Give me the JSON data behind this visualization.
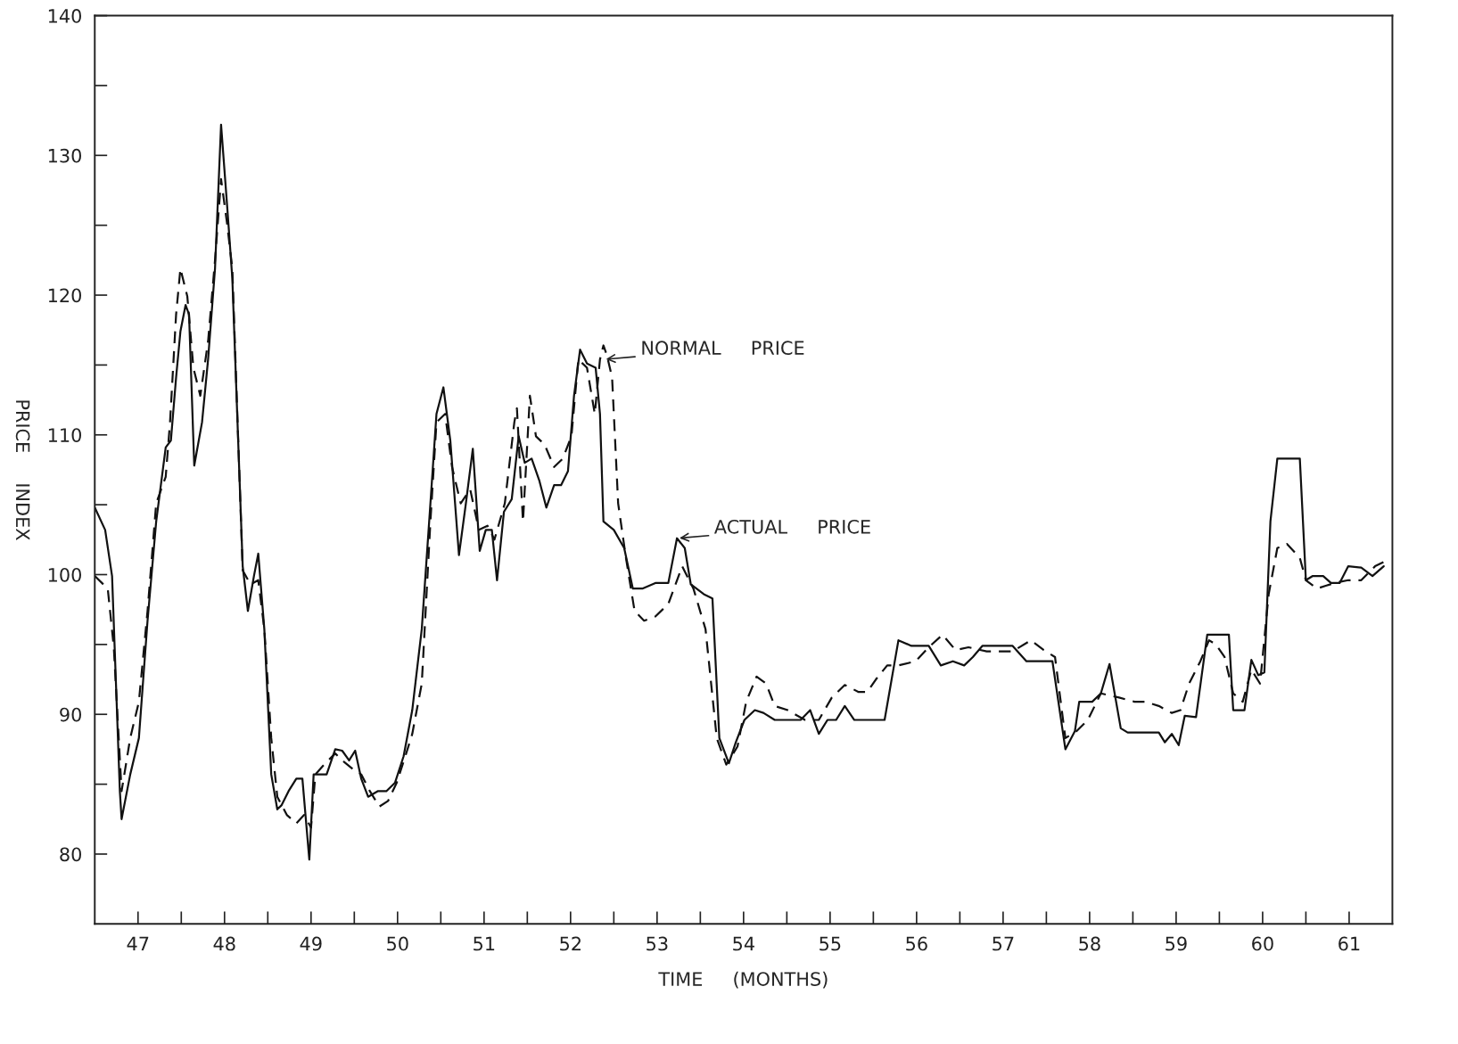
{
  "chart_data": {
    "type": "line",
    "xlabel": "TIME     (MONTHS)",
    "ylabel": "PRICE     INDEX",
    "xlim": [
      47,
      62
    ],
    "ylim": [
      75,
      140
    ],
    "xticks": [
      {
        "value": 47.5,
        "label": "47"
      },
      {
        "value": 48,
        "label": null
      },
      {
        "value": 48.5,
        "label": "48"
      },
      {
        "value": 49,
        "label": null
      },
      {
        "value": 49.5,
        "label": "49"
      },
      {
        "value": 50,
        "label": null
      },
      {
        "value": 50.5,
        "label": "50"
      },
      {
        "value": 51,
        "label": null
      },
      {
        "value": 51.5,
        "label": "51"
      },
      {
        "value": 52,
        "label": null
      },
      {
        "value": 52.5,
        "label": "52"
      },
      {
        "value": 53,
        "label": null
      },
      {
        "value": 53.5,
        "label": "53"
      },
      {
        "value": 54,
        "label": null
      },
      {
        "value": 54.5,
        "label": "54"
      },
      {
        "value": 55,
        "label": null
      },
      {
        "value": 55.5,
        "label": "55"
      },
      {
        "value": 56,
        "label": null
      },
      {
        "value": 56.5,
        "label": "56"
      },
      {
        "value": 57,
        "label": null
      },
      {
        "value": 57.5,
        "label": "57"
      },
      {
        "value": 58,
        "label": null
      },
      {
        "value": 58.5,
        "label": "58"
      },
      {
        "value": 59,
        "label": null
      },
      {
        "value": 59.5,
        "label": "59"
      },
      {
        "value": 60,
        "label": null
      },
      {
        "value": 60.5,
        "label": "60"
      },
      {
        "value": 61,
        "label": null
      },
      {
        "value": 61.5,
        "label": "61"
      }
    ],
    "yticks": [
      80,
      {
        "value": 85,
        "label": null
      },
      90,
      {
        "value": 95,
        "label": null
      },
      100,
      {
        "value": 105,
        "label": null
      },
      110,
      {
        "value": 115,
        "label": null
      },
      120,
      {
        "value": 125,
        "label": null
      },
      130,
      {
        "value": 135,
        "label": null
      },
      140
    ],
    "grid": false,
    "legend": false,
    "annotations": [
      {
        "text": "NORMAL     PRICE",
        "x": 52.88,
        "y": 115.4
      },
      {
        "text": "ACTUAL     PRICE",
        "x": 53.73,
        "y": 102.6
      }
    ],
    "series": [
      {
        "color": "#111111",
        "line_style": "solid",
        "x": [
          47.0,
          47.12,
          47.2,
          47.29,
          47.31,
          47.41,
          47.51,
          47.61,
          47.71,
          47.82,
          47.88,
          47.94,
          47.99,
          48.05,
          48.09,
          48.15,
          48.24,
          48.31,
          48.39,
          48.46,
          48.53,
          48.59,
          48.71,
          48.77,
          48.84,
          48.89,
          48.96,
          49.04,
          49.11,
          49.16,
          49.24,
          49.33,
          49.4,
          49.48,
          49.53,
          49.61,
          49.68,
          49.78,
          49.86,
          49.94,
          50.01,
          50.08,
          50.16,
          50.27,
          50.37,
          50.47,
          50.57,
          50.67,
          50.78,
          50.88,
          50.95,
          51.03,
          51.11,
          51.21,
          51.29,
          51.37,
          51.45,
          51.52,
          51.59,
          51.65,
          51.73,
          51.82,
          51.9,
          51.97,
          52.05,
          52.14,
          52.22,
          52.31,
          52.39,
          52.47,
          52.54,
          52.61,
          52.69,
          52.79,
          52.84,
          52.88,
          53.0,
          53.12,
          53.22,
          53.33,
          53.48,
          53.63,
          53.73,
          53.82,
          53.89,
          54.04,
          54.14,
          54.22,
          54.33,
          54.41,
          54.51,
          54.63,
          54.73,
          54.86,
          55.01,
          55.16,
          55.27,
          55.37,
          55.47,
          55.57,
          55.67,
          55.78,
          55.93,
          56.13,
          56.29,
          56.44,
          56.64,
          56.78,
          56.92,
          57.05,
          57.15,
          57.26,
          57.41,
          57.61,
          57.77,
          58.07,
          58.22,
          58.33,
          58.38,
          58.53,
          58.63,
          58.73,
          58.86,
          58.94,
          59.14,
          59.3,
          59.37,
          59.45,
          59.53,
          59.6,
          59.73,
          59.86,
          59.94,
          60.11,
          60.16,
          60.29,
          60.37,
          60.45,
          60.52,
          60.59,
          60.67,
          60.83,
          60.93,
          61.0,
          61.08,
          61.2,
          61.29,
          61.39,
          61.49,
          61.64,
          61.77,
          61.9
        ],
        "values": [
          104.8,
          103.2,
          99.9,
          84.5,
          82.5,
          85.7,
          88.3,
          96.7,
          103.8,
          109.1,
          109.6,
          114.1,
          117.4,
          119.3,
          118.6,
          107.8,
          110.9,
          115.4,
          121.9,
          132.2,
          126.4,
          121.2,
          100.6,
          97.4,
          99.9,
          101.5,
          96.1,
          85.7,
          83.2,
          83.5,
          84.5,
          85.4,
          85.4,
          79.6,
          85.7,
          85.7,
          85.7,
          87.5,
          87.4,
          86.7,
          87.4,
          85.4,
          84.1,
          84.5,
          84.5,
          85.1,
          87.0,
          90.3,
          96.1,
          105.1,
          111.5,
          113.4,
          109.6,
          101.4,
          105.1,
          109.0,
          101.7,
          103.2,
          103.2,
          99.6,
          104.5,
          105.4,
          109.9,
          108.0,
          108.3,
          106.7,
          104.8,
          106.4,
          106.4,
          107.4,
          112.8,
          116.1,
          115.1,
          114.8,
          111.5,
          103.8,
          103.2,
          101.9,
          99.0,
          99.0,
          99.4,
          99.4,
          102.6,
          101.9,
          99.3,
          98.6,
          98.3,
          88.3,
          86.5,
          88.0,
          89.6,
          90.3,
          90.1,
          89.6,
          89.6,
          89.6,
          90.3,
          88.6,
          89.6,
          89.6,
          90.6,
          89.6,
          89.6,
          89.6,
          95.3,
          94.9,
          94.9,
          93.5,
          93.8,
          93.5,
          94.1,
          94.9,
          94.9,
          94.9,
          93.8,
          93.8,
          87.5,
          88.8,
          90.9,
          90.9,
          91.5,
          93.6,
          89.0,
          88.7,
          88.7,
          88.7,
          88.0,
          88.6,
          87.8,
          89.9,
          89.8,
          95.7,
          95.7,
          95.7,
          90.3,
          90.3,
          93.9,
          92.8,
          93.0,
          103.8,
          108.3,
          108.3,
          108.3,
          99.6,
          99.9,
          99.9,
          99.4,
          99.4,
          100.6,
          100.5,
          99.9,
          100.6
        ]
      },
      {
        "color": "#111111",
        "line_style": "dashed",
        "x": [
          47.0,
          47.15,
          47.22,
          47.31,
          47.41,
          47.51,
          47.61,
          47.71,
          47.82,
          47.87,
          47.94,
          47.99,
          48.07,
          48.14,
          48.22,
          48.31,
          48.39,
          48.46,
          48.53,
          48.59,
          48.71,
          48.8,
          48.89,
          48.96,
          49.04,
          49.11,
          49.22,
          49.33,
          49.42,
          49.5,
          49.55,
          49.65,
          49.78,
          49.86,
          49.98,
          50.08,
          50.18,
          50.29,
          50.39,
          50.49,
          50.59,
          50.67,
          50.78,
          50.88,
          50.95,
          51.05,
          51.13,
          51.23,
          51.34,
          51.44,
          51.54,
          51.62,
          51.74,
          51.85,
          51.88,
          51.95,
          52.03,
          52.1,
          52.2,
          52.31,
          52.41,
          52.51,
          52.59,
          52.69,
          52.78,
          52.84,
          52.88,
          52.92,
          52.98,
          53.05,
          53.14,
          53.24,
          53.35,
          53.48,
          53.63,
          53.79,
          53.92,
          54.06,
          54.19,
          54.3,
          54.43,
          54.53,
          54.65,
          54.76,
          54.86,
          55.01,
          55.21,
          55.37,
          55.52,
          55.67,
          55.83,
          55.93,
          56.03,
          56.16,
          56.29,
          56.49,
          56.64,
          56.8,
          56.95,
          57.1,
          57.31,
          57.61,
          57.82,
          57.97,
          58.1,
          58.22,
          58.35,
          58.48,
          58.63,
          58.84,
          59.02,
          59.14,
          59.3,
          59.45,
          59.55,
          59.65,
          59.78,
          59.88,
          59.96,
          60.06,
          60.16,
          60.27,
          60.37,
          60.47,
          60.57,
          60.67,
          60.78,
          60.93,
          61.0,
          61.13,
          61.23,
          61.33,
          61.49,
          61.64,
          61.8,
          61.9
        ],
        "values": [
          99.9,
          99.0,
          94.8,
          84.5,
          88.3,
          90.9,
          97.4,
          105.1,
          107.0,
          110.9,
          118.6,
          121.9,
          119.9,
          114.8,
          112.8,
          116.7,
          122.5,
          128.3,
          125.1,
          121.9,
          100.3,
          99.3,
          99.6,
          96.1,
          88.3,
          84.1,
          82.8,
          82.2,
          82.8,
          81.9,
          85.7,
          86.4,
          87.2,
          86.7,
          86.1,
          85.7,
          84.5,
          83.4,
          83.8,
          85.1,
          87.0,
          88.6,
          92.2,
          103.8,
          110.9,
          111.5,
          107.7,
          105.1,
          106.1,
          103.2,
          103.5,
          102.5,
          105.1,
          110.9,
          111.9,
          103.8,
          112.8,
          109.9,
          109.3,
          107.7,
          108.3,
          109.9,
          115.4,
          114.8,
          111.5,
          115.4,
          116.4,
          115.7,
          114.1,
          105.1,
          101.2,
          97.4,
          96.7,
          97.0,
          97.9,
          100.6,
          99.0,
          96.1,
          88.3,
          86.4,
          87.7,
          90.9,
          92.7,
          92.2,
          90.6,
          90.3,
          89.6,
          89.6,
          91.2,
          92.1,
          91.6,
          91.6,
          92.5,
          93.5,
          93.5,
          93.8,
          94.8,
          95.7,
          94.6,
          94.8,
          94.5,
          94.5,
          95.3,
          94.6,
          94.1,
          88.3,
          88.8,
          89.6,
          91.5,
          91.2,
          90.9,
          90.9,
          90.6,
          90.1,
          90.3,
          92.2,
          93.8,
          95.3,
          95.0,
          94.1,
          91.5,
          90.9,
          93.2,
          92.2,
          98.6,
          101.9,
          102.2,
          101.2,
          99.6,
          99.0,
          99.2,
          99.4,
          99.6,
          99.6,
          100.6,
          100.9
        ]
      }
    ]
  }
}
